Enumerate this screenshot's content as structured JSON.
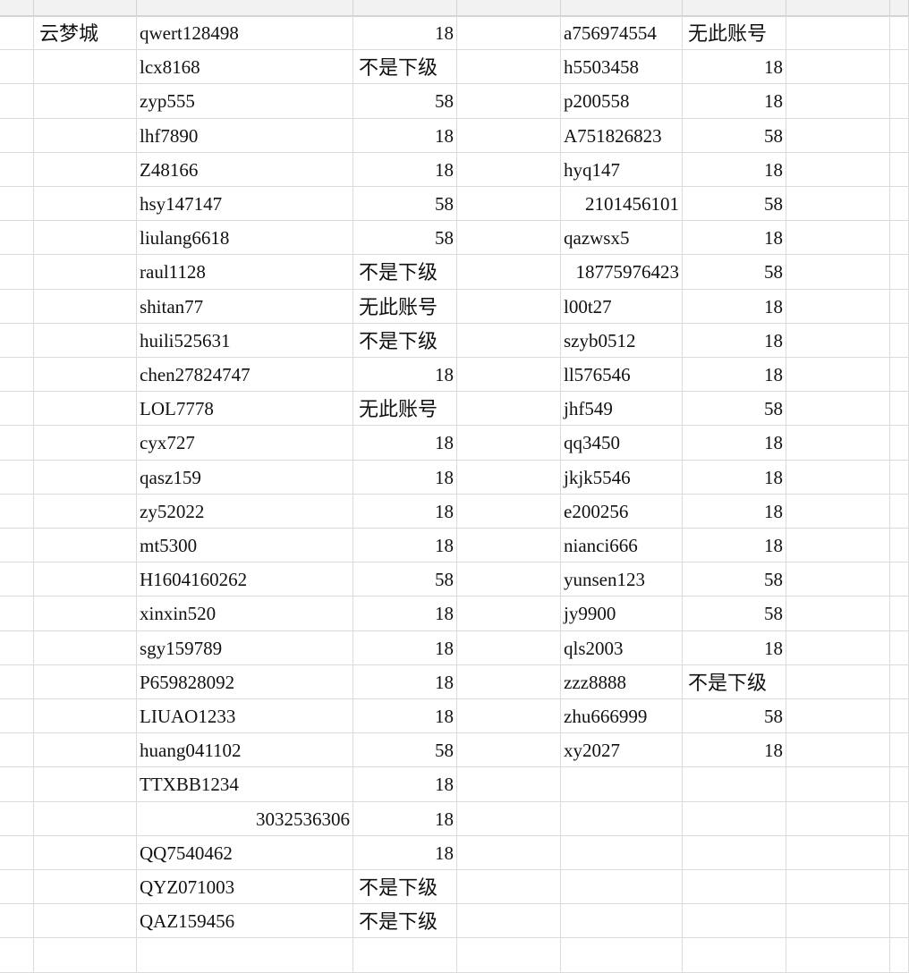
{
  "spreadsheet": {
    "group_label": "云梦城",
    "left_rows": [
      {
        "account": "qwert128498",
        "value": "18"
      },
      {
        "account": "lcx8168",
        "value": "不是下级"
      },
      {
        "account": "zyp555",
        "value": "58"
      },
      {
        "account": "lhf7890",
        "value": "18"
      },
      {
        "account": "Z48166",
        "value": "18"
      },
      {
        "account": "hsy147147",
        "value": "58"
      },
      {
        "account": "liulang6618",
        "value": "58"
      },
      {
        "account": "raul1128",
        "value": "不是下级"
      },
      {
        "account": "shitan77",
        "value": "无此账号"
      },
      {
        "account": "huili525631",
        "value": "不是下级"
      },
      {
        "account": "chen27824747",
        "value": "18"
      },
      {
        "account": "LOL7778",
        "value": "无此账号"
      },
      {
        "account": "cyx727",
        "value": "18"
      },
      {
        "account": "qasz159",
        "value": "18"
      },
      {
        "account": "zy52022",
        "value": "18"
      },
      {
        "account": "mt5300",
        "value": "18"
      },
      {
        "account": "H1604160262",
        "value": "58"
      },
      {
        "account": "xinxin520",
        "value": "18"
      },
      {
        "account": "sgy159789",
        "value": "18"
      },
      {
        "account": "P659828092",
        "value": "18"
      },
      {
        "account": "LIUAO1233",
        "value": "18"
      },
      {
        "account": "huang041102",
        "value": "58"
      },
      {
        "account": "TTXBB1234",
        "value": "18"
      },
      {
        "account": "3032536306",
        "value": "18",
        "numeric": true
      },
      {
        "account": "QQ7540462",
        "value": "18"
      },
      {
        "account": "QYZ071003",
        "value": "不是下级"
      },
      {
        "account": "QAZ159456",
        "value": "不是下级"
      }
    ],
    "right_rows": [
      {
        "account": "a756974554",
        "value": "无此账号"
      },
      {
        "account": "h5503458",
        "value": "18"
      },
      {
        "account": "p200558",
        "value": "18"
      },
      {
        "account": "A751826823",
        "value": "58"
      },
      {
        "account": "hyq147",
        "value": "18"
      },
      {
        "account": "2101456101",
        "value": "58",
        "numeric": true
      },
      {
        "account": "qazwsx5",
        "value": "18"
      },
      {
        "account": "18775976423",
        "value": "58",
        "numeric": true
      },
      {
        "account": "l00t27",
        "value": "18"
      },
      {
        "account": "szyb0512",
        "value": "18"
      },
      {
        "account": "ll576546",
        "value": "18"
      },
      {
        "account": "jhf549",
        "value": "58"
      },
      {
        "account": "qq3450",
        "value": "18"
      },
      {
        "account": "jkjk5546",
        "value": "18"
      },
      {
        "account": "e200256",
        "value": "18"
      },
      {
        "account": "nianci666",
        "value": "18"
      },
      {
        "account": "yunsen123",
        "value": "58"
      },
      {
        "account": "jy9900",
        "value": "58"
      },
      {
        "account": "qls2003",
        "value": "18"
      },
      {
        "account": "zzz8888",
        "value": "不是下级"
      },
      {
        "account": "zhu666999",
        "value": "58"
      },
      {
        "account": "xy2027",
        "value": "18"
      }
    ]
  }
}
